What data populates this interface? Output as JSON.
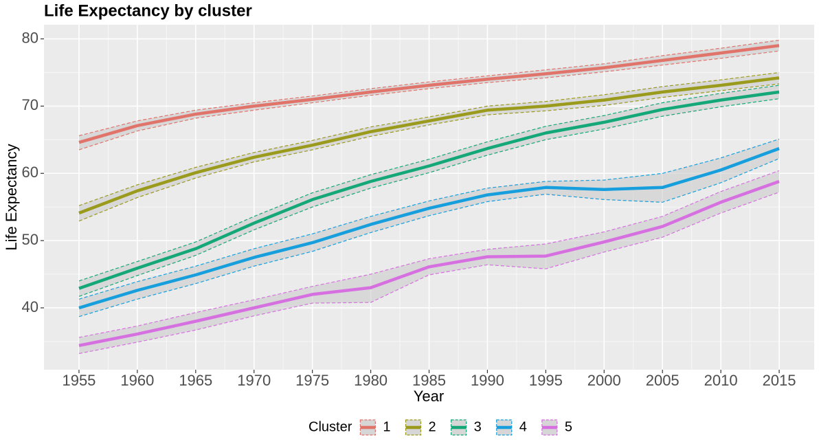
{
  "chart_data": {
    "type": "line",
    "title": "Life Expectancy by cluster",
    "x_label": "Year",
    "y_label": "Life Expectancy",
    "legend_title": "Cluster",
    "legend_position": "bottom",
    "grid": true,
    "x": [
      1955,
      1960,
      1965,
      1970,
      1975,
      1980,
      1985,
      1990,
      1995,
      2000,
      2005,
      2010,
      2015
    ],
    "xlim": [
      1952,
      2018
    ],
    "xticks": [
      1955,
      1960,
      1965,
      1970,
      1975,
      1980,
      1985,
      1990,
      1995,
      2000,
      2005,
      2010,
      2015
    ],
    "ylim": [
      30.8,
      82.1
    ],
    "yticks": [
      40,
      50,
      60,
      70,
      80
    ],
    "series": [
      {
        "name": "1",
        "color": "#e0736a",
        "values": [
          64.6,
          67.1,
          68.8,
          70.0,
          71.0,
          72.1,
          73.1,
          74.0,
          74.8,
          75.7,
          76.8,
          77.9,
          79.0
        ],
        "lower": [
          63.5,
          66.3,
          68.2,
          69.4,
          70.5,
          71.6,
          72.6,
          73.5,
          74.2,
          75.1,
          76.1,
          77.1,
          78.2
        ],
        "upper": [
          65.6,
          67.8,
          69.4,
          70.5,
          71.5,
          72.6,
          73.6,
          74.5,
          75.4,
          76.3,
          77.5,
          78.6,
          79.8
        ]
      },
      {
        "name": "2",
        "color": "#9a9a1c",
        "values": [
          54.1,
          57.4,
          60.1,
          62.4,
          64.2,
          66.2,
          67.8,
          69.4,
          70.0,
          70.9,
          72.1,
          73.1,
          74.2
        ],
        "lower": [
          52.9,
          56.4,
          59.3,
          61.7,
          63.5,
          65.5,
          67.2,
          68.7,
          69.3,
          70.1,
          71.3,
          72.3,
          73.3
        ],
        "upper": [
          55.2,
          58.3,
          60.9,
          63.1,
          64.9,
          66.9,
          68.4,
          70.0,
          70.7,
          71.7,
          72.9,
          73.9,
          75.0
        ]
      },
      {
        "name": "3",
        "color": "#14a878",
        "values": [
          42.9,
          45.9,
          48.8,
          52.6,
          56.1,
          58.8,
          61.1,
          63.7,
          66.0,
          67.6,
          69.5,
          70.9,
          72.1
        ],
        "lower": [
          41.7,
          44.8,
          47.8,
          51.6,
          55.0,
          57.8,
          60.1,
          62.7,
          65.0,
          66.6,
          68.5,
          69.9,
          71.1
        ],
        "upper": [
          44.0,
          46.9,
          49.8,
          53.6,
          57.1,
          59.8,
          62.1,
          64.7,
          67.0,
          68.6,
          70.5,
          71.9,
          73.1
        ]
      },
      {
        "name": "4",
        "color": "#169fdc",
        "values": [
          40.0,
          42.6,
          44.9,
          47.5,
          49.7,
          52.4,
          54.8,
          56.8,
          57.9,
          57.6,
          57.9,
          60.5,
          63.7
        ],
        "lower": [
          38.7,
          41.3,
          43.6,
          46.2,
          48.4,
          51.2,
          53.7,
          55.8,
          56.9,
          56.1,
          55.7,
          58.6,
          62.2
        ],
        "upper": [
          41.3,
          43.9,
          46.2,
          48.8,
          51.0,
          53.6,
          55.9,
          57.8,
          58.8,
          59.0,
          60.0,
          62.3,
          65.1
        ]
      },
      {
        "name": "5",
        "color": "#d670e0",
        "values": [
          34.4,
          36.1,
          38.0,
          40.0,
          42.0,
          43.0,
          46.1,
          47.6,
          47.7,
          49.8,
          52.1,
          55.7,
          58.8
        ],
        "lower": [
          33.2,
          34.9,
          36.7,
          38.8,
          40.7,
          40.8,
          44.9,
          46.4,
          45.8,
          48.3,
          50.5,
          54.1,
          57.2
        ],
        "upper": [
          35.6,
          37.3,
          39.3,
          41.2,
          43.2,
          45.0,
          47.3,
          48.7,
          49.5,
          51.3,
          53.6,
          57.3,
          60.4
        ]
      }
    ]
  }
}
